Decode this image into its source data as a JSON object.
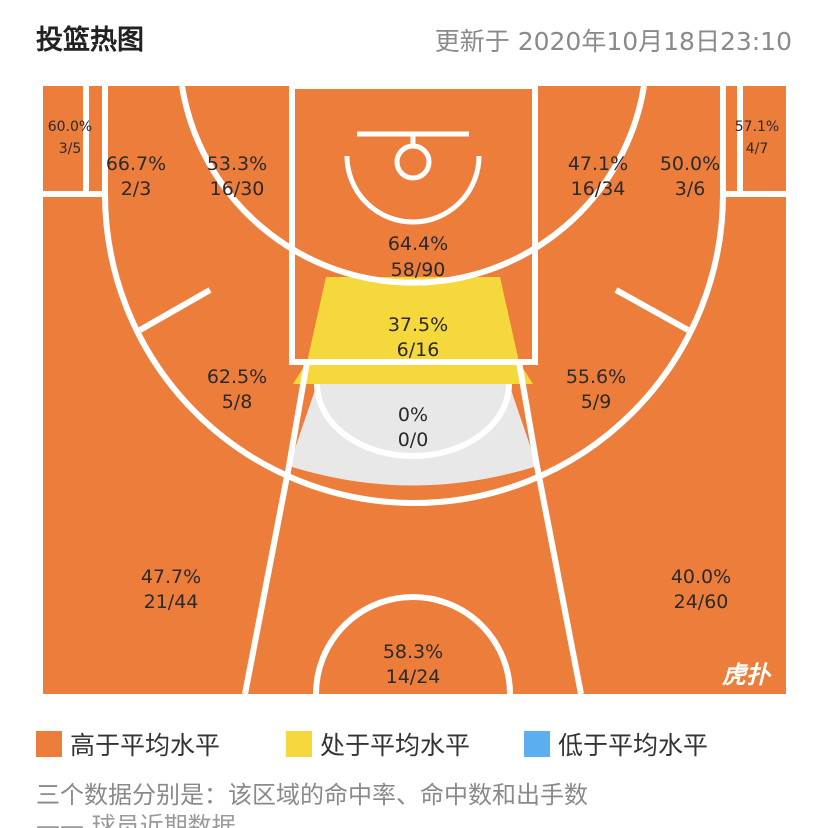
{
  "header": {
    "title": "投篮热图",
    "updated": "更新于 2020年10月18日23:10"
  },
  "colors": {
    "above": "#ED7D3A",
    "average": "#F4D83C",
    "below": "#5BAEF0",
    "none": "#E8E8E8",
    "lines": "#ffffff"
  },
  "zones": {
    "corner_left": {
      "pct": "60.0%",
      "made": "3/5",
      "level": "above"
    },
    "wing_mid_left": {
      "pct": "66.7%",
      "made": "2/3",
      "level": "above"
    },
    "mid_top_left": {
      "pct": "53.3%",
      "made": "16/30",
      "level": "above"
    },
    "paint": {
      "pct": "64.4%",
      "made": "58/90",
      "level": "above"
    },
    "mid_top_right": {
      "pct": "47.1%",
      "made": "16/34",
      "level": "above"
    },
    "wing_mid_right": {
      "pct": "50.0%",
      "made": "3/6",
      "level": "above"
    },
    "corner_right": {
      "pct": "57.1%",
      "made": "4/7",
      "level": "above"
    },
    "free_throw": {
      "pct": "37.5%",
      "made": "6/16",
      "level": "average"
    },
    "elbow_left": {
      "pct": "62.5%",
      "made": "5/8",
      "level": "above"
    },
    "elbow_right": {
      "pct": "55.6%",
      "made": "5/9",
      "level": "above"
    },
    "top_key": {
      "pct": "0%",
      "made": "0/0",
      "level": "none"
    },
    "three_left": {
      "pct": "47.7%",
      "made": "21/44",
      "level": "above"
    },
    "three_right": {
      "pct": "40.0%",
      "made": "24/60",
      "level": "above"
    },
    "three_top": {
      "pct": "58.3%",
      "made": "14/24",
      "level": "above"
    }
  },
  "watermark": "虎扑",
  "legend": [
    {
      "label": "高于平均水平",
      "color": "#ED7D3A"
    },
    {
      "label": "处于平均水平",
      "color": "#F4D83C"
    },
    {
      "label": "低于平均水平",
      "color": "#5BAEF0"
    }
  ],
  "note": "三个数据分别是：该区域的命中率、命中数和出手数",
  "cutoff_text": "—— 球员近期数据"
}
